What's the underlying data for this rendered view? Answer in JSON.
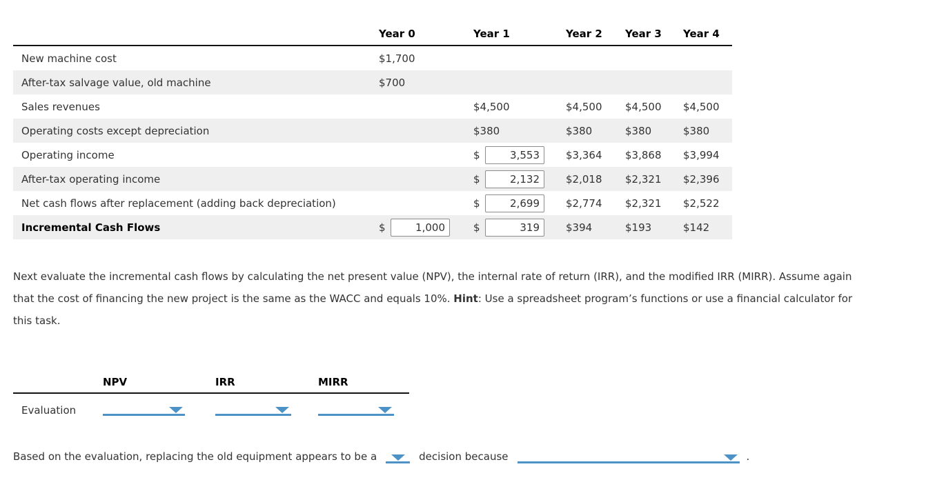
{
  "currency": "$",
  "colors": {
    "accent_blue": "#4d92c7",
    "alt_row_bg": "#efefef"
  },
  "table": {
    "col_headers": [
      "Year 0",
      "Year 1",
      "Year 2",
      "Year 3",
      "Year 4"
    ],
    "rows": [
      {
        "label": "New machine cost",
        "y0": "$1,700",
        "y1": "",
        "y2": "",
        "y3": "",
        "y4": ""
      },
      {
        "label": "After-tax salvage value, old machine",
        "y0": "$700",
        "y1": "",
        "y2": "",
        "y3": "",
        "y4": ""
      },
      {
        "label": "Sales revenues",
        "y0": "",
        "y1": "$4,500",
        "y2": "$4,500",
        "y3": "$4,500",
        "y4": "$4,500"
      },
      {
        "label": "Operating costs except depreciation",
        "y0": "",
        "y1": "$380",
        "y2": "$380",
        "y3": "$380",
        "y4": "$380"
      },
      {
        "label": "Operating income",
        "y0": "",
        "y1_input": "3,553",
        "y2": "$3,364",
        "y3": "$3,868",
        "y4": "$3,994"
      },
      {
        "label": "After-tax operating income",
        "y0": "",
        "y1_input": "2,132",
        "y2": "$2,018",
        "y3": "$2,321",
        "y4": "$2,396"
      },
      {
        "label": "Net cash flows after replacement (adding back depreciation)",
        "y0": "",
        "y1_input": "2,699",
        "y2": "$2,774",
        "y3": "$2,321",
        "y4": "$2,522"
      },
      {
        "label": "Incremental Cash Flows",
        "y0_input": "1,000",
        "y1_input": "319",
        "y2": "$394",
        "y3": "$193",
        "y4": "$142"
      }
    ]
  },
  "paragraph": {
    "before_hint": "Next evaluate the incremental cash flows by calculating the net present value (NPV), the internal rate of return (IRR), and the modified IRR (MIRR). Assume again that the cost of financing the new project is the same as the WACC and equals 10%. ",
    "hint_label": "Hint",
    "after_hint": ": Use a spreadsheet program’s functions or use a financial calculator for this task."
  },
  "evaluation": {
    "headers": [
      "NPV",
      "IRR",
      "MIRR"
    ],
    "row_label": "Evaluation"
  },
  "conclusion": {
    "before": "Based on the evaluation, replacing the old equipment appears to be a",
    "middle": "decision because",
    "period": "."
  }
}
